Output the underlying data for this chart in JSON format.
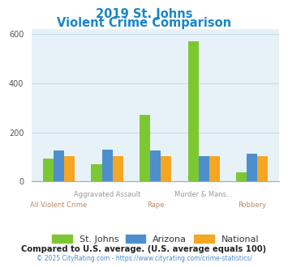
{
  "title_line1": "2019 St. Johns",
  "title_line2": "Violent Crime Comparison",
  "title_color": "#1a86c7",
  "categories": [
    "All Violent Crime",
    "Aggravated Assault",
    "Rape",
    "Murder & Mans...",
    "Robbery"
  ],
  "xtick_top": [
    "",
    "Aggravated Assault",
    "",
    "Murder & Mans...",
    ""
  ],
  "xtick_bot": [
    "All Violent Crime",
    "",
    "Rape",
    "",
    "Robbery"
  ],
  "series": {
    "St. Johns": [
      95,
      70,
      270,
      570,
      38
    ],
    "Arizona": [
      125,
      130,
      125,
      103,
      113
    ],
    "National": [
      102,
      102,
      103,
      103,
      102
    ]
  },
  "colors": {
    "St. Johns": "#7dc832",
    "Arizona": "#4d8fcc",
    "National": "#f5a623"
  },
  "ylim": [
    0,
    620
  ],
  "yticks": [
    0,
    200,
    400,
    600
  ],
  "chart_bg": "#e6f2f7",
  "grid_color": "#c8dde6",
  "note": "Compared to U.S. average. (U.S. average equals 100)",
  "note_color": "#222222",
  "footer": "© 2025 CityRating.com - https://www.cityrating.com/crime-statistics/",
  "footer_color": "#4d8fcc",
  "xtick_top_color": "#999999",
  "xtick_bot_color": "#bb8866",
  "bar_width": 0.22
}
